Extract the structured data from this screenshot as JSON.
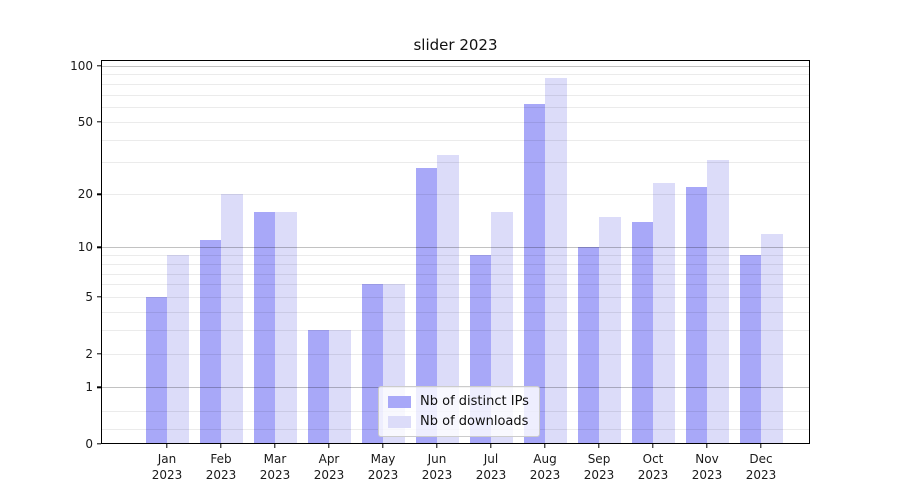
{
  "title": "slider 2023",
  "chart_data": {
    "type": "bar",
    "title": "slider 2023",
    "categories": [
      "Jan",
      "Feb",
      "Mar",
      "Apr",
      "May",
      "Jun",
      "Jul",
      "Aug",
      "Sep",
      "Oct",
      "Nov",
      "Dec"
    ],
    "year": "2023",
    "series": [
      {
        "name": "Nb of distinct IPs",
        "color": "#a8a8f8",
        "values": [
          5,
          11,
          16,
          3,
          6,
          28,
          9,
          62,
          10,
          14,
          22,
          9
        ]
      },
      {
        "name": "Nb of downloads",
        "color": "#dcdcf9",
        "values": [
          9,
          20,
          16,
          3,
          6,
          33,
          16,
          86,
          15,
          23,
          31,
          12
        ]
      }
    ],
    "yscale": "log1p",
    "ylim": [
      0,
      106
    ],
    "ytick_values": [
      0,
      1,
      2,
      5,
      10,
      20,
      50,
      100
    ],
    "ytick_labels": [
      "0",
      "1",
      "2",
      "5",
      "10",
      "20",
      "50",
      "100"
    ],
    "major_grid_values": [
      1,
      10,
      100
    ],
    "minor_grid_values": [
      0.2,
      0.5,
      2,
      3,
      4,
      5,
      6,
      7,
      8,
      9,
      20,
      30,
      40,
      50,
      60,
      70,
      80,
      90
    ],
    "grid": true,
    "legend_position": "lower center",
    "background_color": "#ffffff",
    "spine_color": "#000000"
  }
}
